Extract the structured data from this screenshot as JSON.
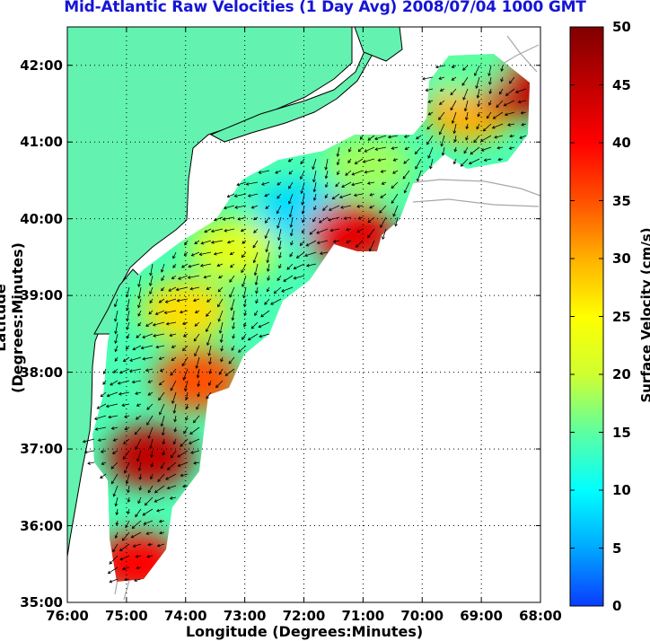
{
  "title": "Mid-Atlantic Raw Velocities (1 Day Avg) 2008/07/04 1000 GMT",
  "x_axis": {
    "label": "Longitude (Degrees:Minutes)",
    "ticks": [
      "76:00",
      "75:00",
      "74:00",
      "73:00",
      "72:00",
      "71:00",
      "70:00",
      "69:00",
      "68:00"
    ]
  },
  "y_axis": {
    "label": "Latitude (Degrees:Minutes)",
    "ticks": [
      "35:00",
      "36:00",
      "37:00",
      "38:00",
      "39:00",
      "40:00",
      "41:00",
      "42:00"
    ]
  },
  "colorbar": {
    "label": "Surface Velocity (cm/s)",
    "min": 0,
    "max": 50,
    "ticks": [
      "0",
      "5",
      "10",
      "15",
      "20",
      "25",
      "30",
      "35",
      "40",
      "45",
      "50"
    ],
    "colors": [
      "#0a3cff",
      "#00a8ff",
      "#00ffff",
      "#5dffa0",
      "#cfff30",
      "#ffff00",
      "#ffb000",
      "#ff5000",
      "#ff0000",
      "#c00000",
      "#800000"
    ]
  },
  "map_colors": {
    "land": "#63f2b0",
    "ocean": "#ffffff",
    "coast": "#000000",
    "bathymetry": "#a8a8a8",
    "grid": "#000000"
  },
  "chart_data": {
    "type": "map",
    "title": "Mid-Atlantic Raw Velocities (1 Day Avg) 2008/07/04 1000 GMT",
    "xlabel": "Longitude (Degrees:Minutes)",
    "ylabel": "Latitude (Degrees:Minutes)",
    "xlim": [
      -76,
      -68
    ],
    "ylim": [
      35,
      42.5
    ],
    "grid": "dotted",
    "colorbar_range": [
      0,
      50
    ],
    "colorbar_label": "Surface Velocity (cm/s)",
    "field_regions": [
      {
        "lon": -74.6,
        "lat": 36.9,
        "speed": 45
      },
      {
        "lon": -74.8,
        "lat": 35.5,
        "speed": 40
      },
      {
        "lon": -73.8,
        "lat": 37.9,
        "speed": 35
      },
      {
        "lon": -74.0,
        "lat": 38.8,
        "speed": 27
      },
      {
        "lon": -73.2,
        "lat": 39.6,
        "speed": 22
      },
      {
        "lon": -72.1,
        "lat": 40.1,
        "speed": 8
      },
      {
        "lon": -71.2,
        "lat": 39.8,
        "speed": 42
      },
      {
        "lon": -70.9,
        "lat": 40.7,
        "speed": 18
      },
      {
        "lon": -69.2,
        "lat": 41.4,
        "speed": 30
      },
      {
        "lon": -68.4,
        "lat": 41.7,
        "speed": 45
      },
      {
        "lon": -69.3,
        "lat": 42.0,
        "speed": 15
      }
    ]
  }
}
